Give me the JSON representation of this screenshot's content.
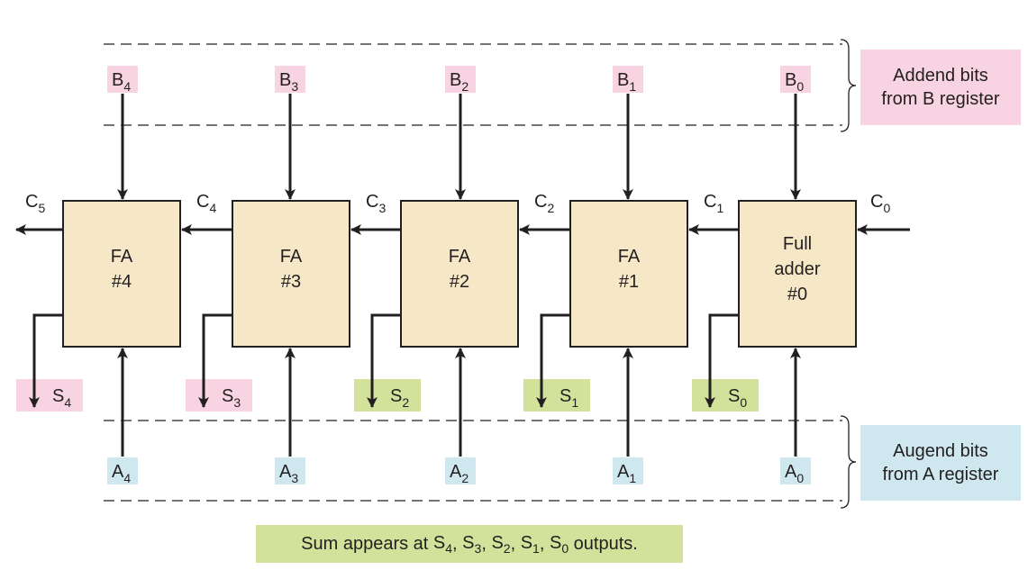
{
  "register_labels": {
    "b_register": [
      "Addend bits",
      "from B register"
    ],
    "a_register": [
      "Augend bits",
      "from A register"
    ]
  },
  "stages": [
    {
      "id": "4",
      "block": [
        "FA",
        "#4"
      ],
      "b": "B",
      "a": "A",
      "s": "S",
      "c_out": "C",
      "sub": "4",
      "c_sub": "5",
      "sum_color": "pink"
    },
    {
      "id": "3",
      "block": [
        "FA",
        "#3"
      ],
      "b": "B",
      "a": "A",
      "s": "S",
      "c_out": "C",
      "sub": "3",
      "c_sub": "4",
      "sum_color": "pink"
    },
    {
      "id": "2",
      "block": [
        "FA",
        "#2"
      ],
      "b": "B",
      "a": "A",
      "s": "S",
      "c_out": "C",
      "sub": "2",
      "c_sub": "3",
      "sum_color": "green"
    },
    {
      "id": "1",
      "block": [
        "FA",
        "#1"
      ],
      "b": "B",
      "a": "A",
      "s": "S",
      "c_out": "C",
      "sub": "1",
      "c_sub": "2",
      "sum_color": "green"
    },
    {
      "id": "0",
      "block": [
        "Full",
        "adder",
        "#0"
      ],
      "b": "B",
      "a": "A",
      "s": "S",
      "c_out": "C",
      "sub": "0",
      "c_sub": "1",
      "sum_color": "green"
    }
  ],
  "carry_in": {
    "letter": "C",
    "sub": "0"
  },
  "note": {
    "prefix": "Sum appears at ",
    "outputs": [
      {
        "letter": "S",
        "sub": "4"
      },
      {
        "letter": "S",
        "sub": "3"
      },
      {
        "letter": "S",
        "sub": "2"
      },
      {
        "letter": "S",
        "sub": "1"
      },
      {
        "letter": "S",
        "sub": "0"
      }
    ],
    "suffix": " outputs."
  },
  "colors": {
    "block_fill": "#f6e8c6",
    "pink": "#f8d3e2",
    "blue": "#cfe8ef",
    "green": "#d2e29a",
    "stroke": "#231f20"
  }
}
